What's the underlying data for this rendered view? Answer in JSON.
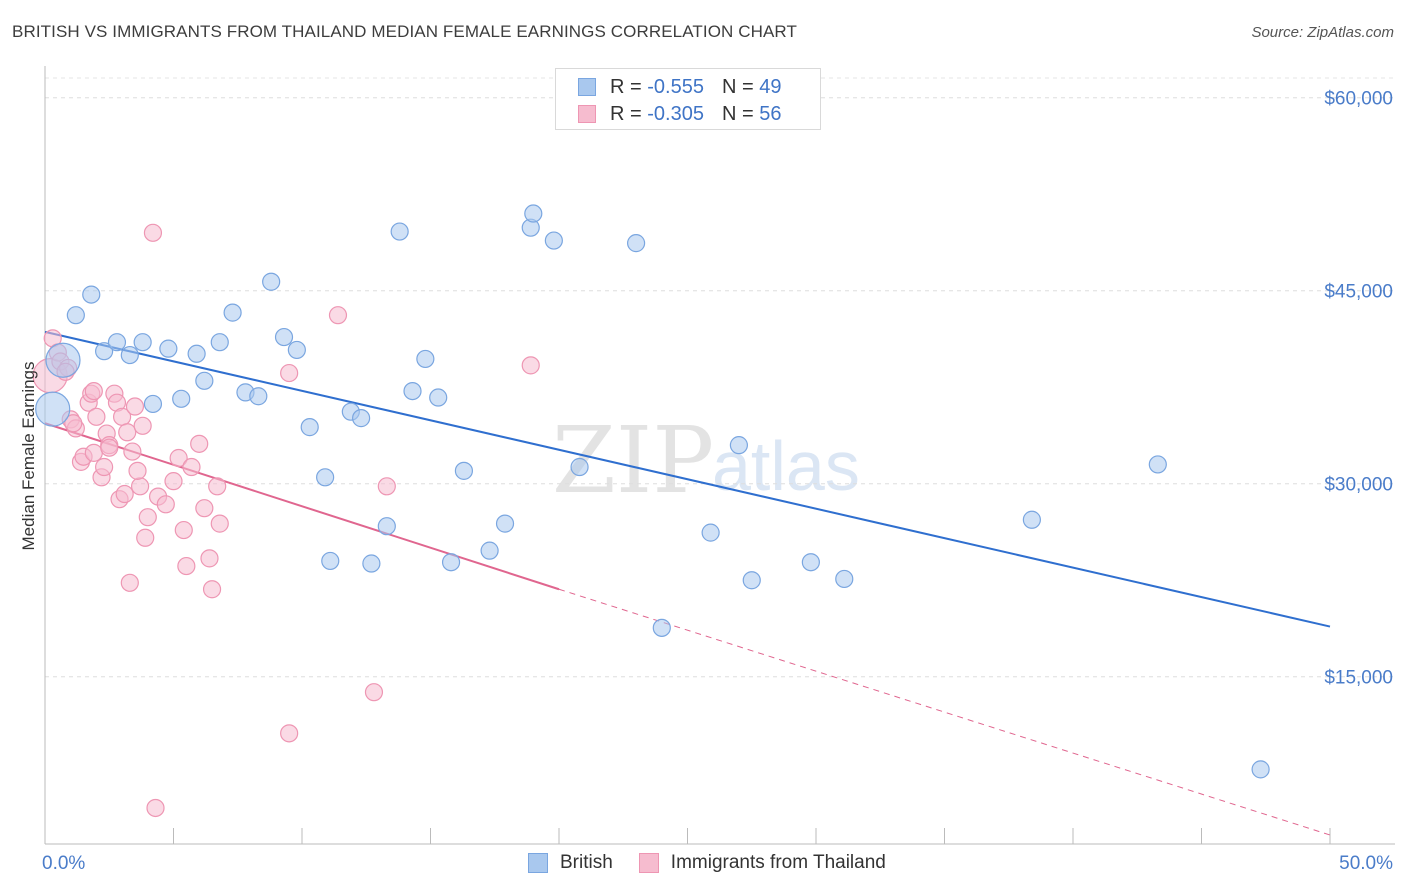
{
  "header": {
    "title": "BRITISH VS IMMIGRANTS FROM THAILAND MEDIAN FEMALE EARNINGS CORRELATION CHART",
    "source": "Source: ZipAtlas.com"
  },
  "watermark": {
    "part1": "ZIP",
    "part2": "atlas"
  },
  "colors": {
    "british_fill": "#a9c8ee",
    "british_stroke": "#7aa6e0",
    "british_line": "#2f6fcf",
    "thai_fill": "#f6bccf",
    "thai_stroke": "#ee96b3",
    "thai_line": "#e0668f",
    "axis_text": "#4a7cc9"
  },
  "stats_legend": [
    {
      "r_label": "R =",
      "r_value": "-0.555",
      "n_label": "N =",
      "n_value": "49"
    },
    {
      "r_label": "R =",
      "r_value": "-0.305",
      "n_label": "N =",
      "n_value": "56"
    }
  ],
  "chart_data": {
    "type": "scatter",
    "title": "BRITISH VS IMMIGRANTS FROM THAILAND MEDIAN FEMALE EARNINGS CORRELATION CHART",
    "xlabel": "",
    "ylabel": "Median Female Earnings",
    "xlim": [
      0,
      50
    ],
    "ylim": [
      2000,
      62000
    ],
    "x_tick_labels": [
      "0.0%",
      "50.0%"
    ],
    "y_ticks": [
      15000,
      30000,
      45000,
      60000
    ],
    "y_tick_labels": [
      "$15,000",
      "$30,000",
      "$45,000",
      "$60,000"
    ],
    "grid": true,
    "legend_position": "bottom-center",
    "series": [
      {
        "name": "British",
        "r": -0.555,
        "n": 49,
        "trend": {
          "x": [
            0,
            50
          ],
          "y": [
            41800,
            18900
          ],
          "dashed_extension": false
        },
        "points": [
          {
            "x": 0.3,
            "y": 35800,
            "big": true
          },
          {
            "x": 0.7,
            "y": 39600,
            "big": true
          },
          {
            "x": 1.2,
            "y": 43100
          },
          {
            "x": 1.8,
            "y": 44700
          },
          {
            "x": 2.3,
            "y": 40300
          },
          {
            "x": 2.8,
            "y": 41000
          },
          {
            "x": 3.3,
            "y": 40000
          },
          {
            "x": 3.8,
            "y": 41000
          },
          {
            "x": 4.2,
            "y": 36200
          },
          {
            "x": 4.8,
            "y": 40500
          },
          {
            "x": 5.3,
            "y": 36600
          },
          {
            "x": 5.9,
            "y": 40100
          },
          {
            "x": 6.2,
            "y": 38000
          },
          {
            "x": 6.8,
            "y": 41000
          },
          {
            "x": 7.3,
            "y": 43300
          },
          {
            "x": 7.8,
            "y": 37100
          },
          {
            "x": 8.3,
            "y": 36800
          },
          {
            "x": 8.8,
            "y": 45700
          },
          {
            "x": 9.3,
            "y": 41400
          },
          {
            "x": 9.8,
            "y": 40400
          },
          {
            "x": 10.3,
            "y": 34400
          },
          {
            "x": 10.9,
            "y": 30500
          },
          {
            "x": 11.1,
            "y": 24000
          },
          {
            "x": 11.9,
            "y": 35600
          },
          {
            "x": 12.3,
            "y": 35100
          },
          {
            "x": 12.7,
            "y": 23800
          },
          {
            "x": 13.3,
            "y": 26700
          },
          {
            "x": 13.8,
            "y": 49600
          },
          {
            "x": 14.3,
            "y": 37200
          },
          {
            "x": 14.8,
            "y": 39700
          },
          {
            "x": 15.3,
            "y": 36700
          },
          {
            "x": 15.8,
            "y": 23900
          },
          {
            "x": 16.3,
            "y": 31000
          },
          {
            "x": 17.3,
            "y": 24800
          },
          {
            "x": 17.9,
            "y": 26900
          },
          {
            "x": 18.9,
            "y": 49900
          },
          {
            "x": 19.0,
            "y": 51000
          },
          {
            "x": 19.8,
            "y": 48900
          },
          {
            "x": 20.8,
            "y": 31300
          },
          {
            "x": 23.0,
            "y": 48700
          },
          {
            "x": 24.0,
            "y": 18800
          },
          {
            "x": 25.9,
            "y": 26200
          },
          {
            "x": 27.0,
            "y": 33000
          },
          {
            "x": 27.5,
            "y": 22500
          },
          {
            "x": 29.8,
            "y": 23900
          },
          {
            "x": 31.1,
            "y": 22600
          },
          {
            "x": 38.4,
            "y": 27200
          },
          {
            "x": 43.3,
            "y": 31500
          },
          {
            "x": 47.3,
            "y": 7800
          }
        ]
      },
      {
        "name": "Immigrants from Thailand",
        "r": -0.305,
        "n": 56,
        "trend": {
          "x": [
            0,
            20
          ],
          "y": [
            34700,
            21800
          ],
          "dashed_to": {
            "x": 50,
            "y": 2700
          }
        },
        "points": [
          {
            "x": 0.2,
            "y": 38400,
            "big": true
          },
          {
            "x": 0.3,
            "y": 41300
          },
          {
            "x": 0.5,
            "y": 40200
          },
          {
            "x": 0.6,
            "y": 39500
          },
          {
            "x": 0.9,
            "y": 39000
          },
          {
            "x": 0.8,
            "y": 38700
          },
          {
            "x": 1.0,
            "y": 35000
          },
          {
            "x": 1.2,
            "y": 34300
          },
          {
            "x": 1.4,
            "y": 31700
          },
          {
            "x": 1.5,
            "y": 32100
          },
          {
            "x": 1.7,
            "y": 36300
          },
          {
            "x": 1.8,
            "y": 37000
          },
          {
            "x": 1.9,
            "y": 32400
          },
          {
            "x": 2.0,
            "y": 35200
          },
          {
            "x": 2.2,
            "y": 30500
          },
          {
            "x": 2.3,
            "y": 31300
          },
          {
            "x": 2.4,
            "y": 33900
          },
          {
            "x": 2.5,
            "y": 33000
          },
          {
            "x": 2.7,
            "y": 37000
          },
          {
            "x": 2.8,
            "y": 36300
          },
          {
            "x": 2.9,
            "y": 28800
          },
          {
            "x": 3.0,
            "y": 35200
          },
          {
            "x": 3.1,
            "y": 29200
          },
          {
            "x": 3.2,
            "y": 34000
          },
          {
            "x": 3.3,
            "y": 22300
          },
          {
            "x": 3.4,
            "y": 32500
          },
          {
            "x": 3.5,
            "y": 36000
          },
          {
            "x": 3.7,
            "y": 29800
          },
          {
            "x": 3.8,
            "y": 34500
          },
          {
            "x": 3.9,
            "y": 25800
          },
          {
            "x": 4.0,
            "y": 27400
          },
          {
            "x": 4.2,
            "y": 49500
          },
          {
            "x": 4.4,
            "y": 29000
          },
          {
            "x": 4.7,
            "y": 28400
          },
          {
            "x": 5.2,
            "y": 32000
          },
          {
            "x": 5.4,
            "y": 26400
          },
          {
            "x": 5.5,
            "y": 23600
          },
          {
            "x": 5.7,
            "y": 31300
          },
          {
            "x": 6.0,
            "y": 33100
          },
          {
            "x": 6.2,
            "y": 28100
          },
          {
            "x": 6.4,
            "y": 24200
          },
          {
            "x": 6.5,
            "y": 21800
          },
          {
            "x": 6.7,
            "y": 29800
          },
          {
            "x": 6.8,
            "y": 26900
          },
          {
            "x": 9.5,
            "y": 38600
          },
          {
            "x": 9.5,
            "y": 10600
          },
          {
            "x": 11.4,
            "y": 43100
          },
          {
            "x": 12.8,
            "y": 13800
          },
          {
            "x": 13.3,
            "y": 29800
          },
          {
            "x": 18.9,
            "y": 39200
          },
          {
            "x": 4.3,
            "y": 4800
          },
          {
            "x": 1.1,
            "y": 34700
          },
          {
            "x": 1.9,
            "y": 37200
          },
          {
            "x": 2.5,
            "y": 32800
          },
          {
            "x": 3.6,
            "y": 31000
          },
          {
            "x": 5.0,
            "y": 30200
          }
        ]
      }
    ]
  },
  "bottom_legend": [
    "British",
    "Immigrants from Thailand"
  ]
}
